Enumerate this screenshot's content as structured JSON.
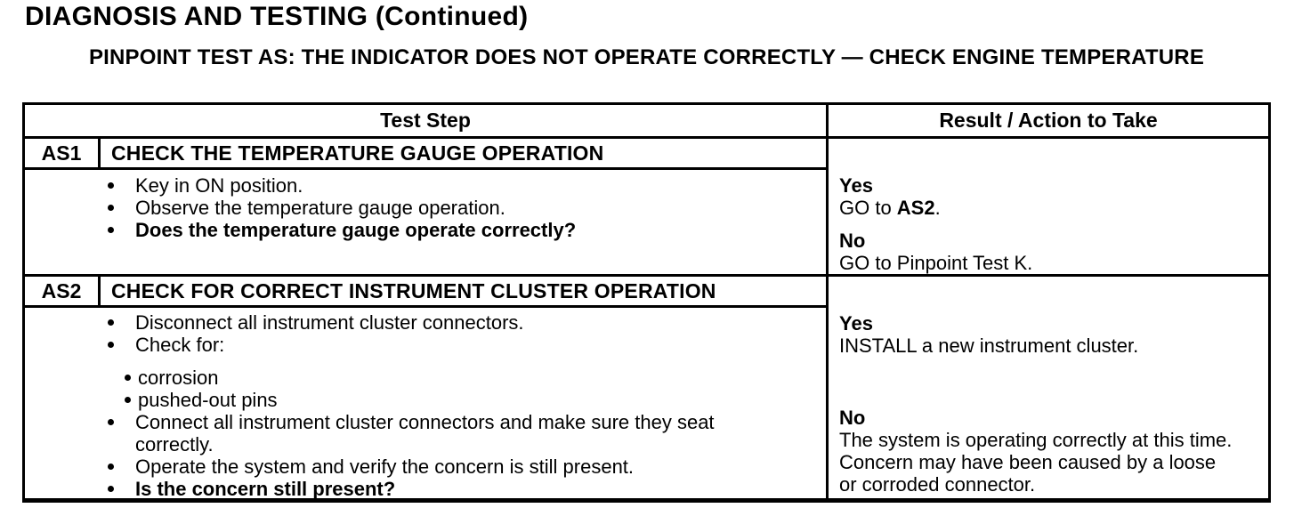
{
  "page": {
    "title": "DIAGNOSIS AND TESTING (Continued)",
    "subtitle": "PINPOINT TEST AS: THE INDICATOR DOES NOT OPERATE CORRECTLY — CHECK ENGINE TEMPERATURE"
  },
  "table": {
    "headers": {
      "test_step": "Test Step",
      "result": "Result / Action to Take"
    },
    "steps": [
      {
        "id": "AS1",
        "title": "CHECK THE TEMPERATURE GAUGE OPERATION",
        "bullets": [
          {
            "level": 1,
            "bold": false,
            "text": "Key in ON position."
          },
          {
            "level": 1,
            "bold": false,
            "text": "Observe the temperature gauge operation."
          },
          {
            "level": 1,
            "bold": true,
            "text": "Does the temperature gauge operate correctly?"
          }
        ],
        "results": [
          {
            "label": "Yes",
            "segments": [
              {
                "bold": false,
                "text": "GO to "
              },
              {
                "bold": true,
                "text": "AS2"
              },
              {
                "bold": false,
                "text": "."
              }
            ]
          },
          {
            "label": "No",
            "segments": [
              {
                "bold": false,
                "text": "GO to Pinpoint Test K."
              }
            ]
          }
        ]
      },
      {
        "id": "AS2",
        "title": "CHECK FOR CORRECT INSTRUMENT CLUSTER OPERATION",
        "bullets": [
          {
            "level": 1,
            "bold": false,
            "text": "Disconnect all instrument cluster connectors."
          },
          {
            "level": 1,
            "bold": false,
            "text": "Check for:"
          },
          {
            "level": 2,
            "bold": false,
            "text": "corrosion"
          },
          {
            "level": 2,
            "bold": false,
            "text": "pushed-out pins"
          },
          {
            "level": 1,
            "bold": false,
            "text": "Connect all instrument cluster connectors and make sure they seat correctly."
          },
          {
            "level": 1,
            "bold": false,
            "text": "Operate the system and verify the concern is still present."
          },
          {
            "level": 1,
            "bold": true,
            "text": "Is the concern still present?"
          }
        ],
        "results": [
          {
            "label": "Yes",
            "segments": [
              {
                "bold": false,
                "text": "INSTALL a new instrument cluster."
              }
            ]
          },
          {
            "label": "No",
            "segments": [
              {
                "bold": false,
                "text": "The system is operating correctly at this time. Concern may have been caused by a loose or corroded connector."
              }
            ]
          }
        ]
      }
    ]
  }
}
